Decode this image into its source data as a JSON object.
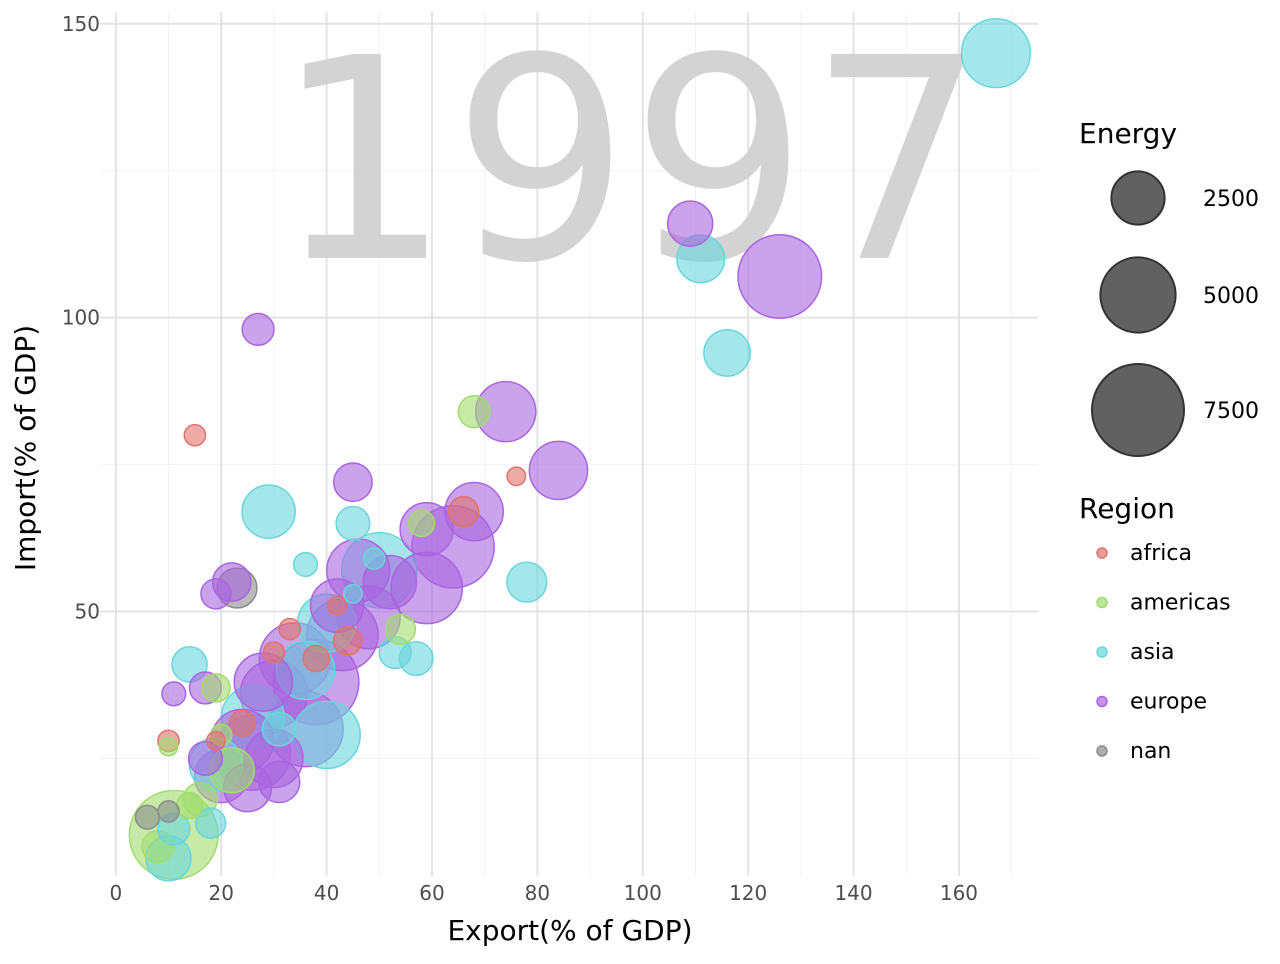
{
  "chart_data": {
    "type": "scatter",
    "annotation": "1997",
    "xlabel": "Export(% of GDP)",
    "ylabel": "Import(% of GDP)",
    "xlim": [
      -3,
      175
    ],
    "ylim": [
      5,
      152
    ],
    "x_ticks": [
      "0",
      "20",
      "40",
      "60",
      "80",
      "100",
      "120",
      "140",
      "160"
    ],
    "y_ticks": [
      "50",
      "100",
      "150"
    ],
    "grid": true,
    "legend_placement": "right",
    "size_legend": {
      "title": "Energy",
      "entries": [
        {
          "label": "2500",
          "value": 2500
        },
        {
          "label": "5000",
          "value": 5000
        },
        {
          "label": "7500",
          "value": 7500
        }
      ]
    },
    "color_legend": {
      "title": "Region",
      "entries": [
        {
          "label": "africa",
          "color": "#e0736d"
        },
        {
          "label": "americas",
          "color": "#a1dc6e"
        },
        {
          "label": "asia",
          "color": "#69d6dc"
        },
        {
          "label": "europe",
          "color": "#a965e0"
        },
        {
          "label": "nan",
          "color": "#8c8c8c"
        }
      ]
    },
    "points": [
      {
        "x": 167,
        "y": 145,
        "energy": 4200,
        "region": "asia"
      },
      {
        "x": 126,
        "y": 107,
        "energy": 6200,
        "region": "europe"
      },
      {
        "x": 109,
        "y": 116,
        "energy": 1800,
        "region": "europe"
      },
      {
        "x": 111,
        "y": 110,
        "energy": 2000,
        "region": "asia"
      },
      {
        "x": 116,
        "y": 94,
        "energy": 1900,
        "region": "asia"
      },
      {
        "x": 84,
        "y": 74,
        "energy": 3000,
        "region": "europe"
      },
      {
        "x": 74,
        "y": 84,
        "energy": 3200,
        "region": "europe"
      },
      {
        "x": 68,
        "y": 84,
        "energy": 900,
        "region": "americas"
      },
      {
        "x": 76,
        "y": 73,
        "energy": 300,
        "region": "africa"
      },
      {
        "x": 78,
        "y": 55,
        "energy": 1400,
        "region": "asia"
      },
      {
        "x": 64,
        "y": 61,
        "energy": 6000,
        "region": "europe"
      },
      {
        "x": 68,
        "y": 67,
        "energy": 3000,
        "region": "europe"
      },
      {
        "x": 66,
        "y": 67,
        "energy": 800,
        "region": "africa"
      },
      {
        "x": 59,
        "y": 64,
        "energy": 2500,
        "region": "europe"
      },
      {
        "x": 58,
        "y": 65,
        "energy": 600,
        "region": "americas"
      },
      {
        "x": 59,
        "y": 54,
        "energy": 4500,
        "region": "europe"
      },
      {
        "x": 57,
        "y": 42,
        "energy": 1000,
        "region": "asia"
      },
      {
        "x": 54,
        "y": 47,
        "energy": 800,
        "region": "americas"
      },
      {
        "x": 53,
        "y": 43,
        "energy": 900,
        "region": "asia"
      },
      {
        "x": 50,
        "y": 57,
        "energy": 5000,
        "region": "asia"
      },
      {
        "x": 52,
        "y": 55,
        "energy": 2500,
        "region": "europe"
      },
      {
        "x": 46,
        "y": 57,
        "energy": 3500,
        "region": "europe"
      },
      {
        "x": 48,
        "y": 49,
        "energy": 3500,
        "region": "europe"
      },
      {
        "x": 45,
        "y": 65,
        "energy": 1000,
        "region": "asia"
      },
      {
        "x": 45,
        "y": 72,
        "energy": 1300,
        "region": "europe"
      },
      {
        "x": 49,
        "y": 59,
        "energy": 400,
        "region": "asia"
      },
      {
        "x": 45,
        "y": 53,
        "energy": 300,
        "region": "asia"
      },
      {
        "x": 42,
        "y": 51,
        "energy": 2500,
        "region": "europe"
      },
      {
        "x": 40,
        "y": 48,
        "energy": 3000,
        "region": "asia"
      },
      {
        "x": 44,
        "y": 45,
        "energy": 700,
        "region": "africa"
      },
      {
        "x": 43,
        "y": 46,
        "energy": 4500,
        "region": "europe"
      },
      {
        "x": 38,
        "y": 42,
        "energy": 600,
        "region": "africa"
      },
      {
        "x": 42,
        "y": 51,
        "energy": 300,
        "region": "africa"
      },
      {
        "x": 29,
        "y": 67,
        "energy": 2500,
        "region": "asia"
      },
      {
        "x": 36,
        "y": 58,
        "energy": 500,
        "region": "asia"
      },
      {
        "x": 27,
        "y": 98,
        "energy": 900,
        "region": "europe"
      },
      {
        "x": 15,
        "y": 80,
        "energy": 400,
        "region": "africa"
      },
      {
        "x": 22,
        "y": 55,
        "energy": 1300,
        "region": "europe"
      },
      {
        "x": 19,
        "y": 53,
        "energy": 800,
        "region": "europe"
      },
      {
        "x": 23,
        "y": 54,
        "energy": 1400,
        "region": "nan"
      },
      {
        "x": 33,
        "y": 47,
        "energy": 400,
        "region": "africa"
      },
      {
        "x": 30,
        "y": 43,
        "energy": 400,
        "region": "africa"
      },
      {
        "x": 34,
        "y": 42,
        "energy": 4500,
        "region": "europe"
      },
      {
        "x": 38,
        "y": 38,
        "energy": 6500,
        "region": "europe"
      },
      {
        "x": 36,
        "y": 40,
        "energy": 3000,
        "region": "asia"
      },
      {
        "x": 30,
        "y": 36,
        "energy": 4000,
        "region": "europe"
      },
      {
        "x": 28,
        "y": 38,
        "energy": 3000,
        "region": "europe"
      },
      {
        "x": 26,
        "y": 32,
        "energy": 3500,
        "region": "asia"
      },
      {
        "x": 24,
        "y": 31,
        "energy": 600,
        "region": "africa"
      },
      {
        "x": 31,
        "y": 30,
        "energy": 1000,
        "region": "asia"
      },
      {
        "x": 40,
        "y": 29,
        "energy": 4000,
        "region": "asia"
      },
      {
        "x": 36,
        "y": 30,
        "energy": 5000,
        "region": "europe"
      },
      {
        "x": 24,
        "y": 28,
        "energy": 3500,
        "region": "europe"
      },
      {
        "x": 26,
        "y": 26,
        "energy": 5000,
        "region": "europe"
      },
      {
        "x": 30,
        "y": 25,
        "energy": 3000,
        "region": "europe"
      },
      {
        "x": 31,
        "y": 21,
        "energy": 1500,
        "region": "europe"
      },
      {
        "x": 25,
        "y": 20,
        "energy": 2000,
        "region": "europe"
      },
      {
        "x": 20,
        "y": 22,
        "energy": 2500,
        "region": "europe"
      },
      {
        "x": 19,
        "y": 24,
        "energy": 2500,
        "region": "asia"
      },
      {
        "x": 22,
        "y": 23,
        "energy": 1800,
        "region": "americas"
      },
      {
        "x": 17,
        "y": 25,
        "energy": 1000,
        "region": "europe"
      },
      {
        "x": 14,
        "y": 41,
        "energy": 1100,
        "region": "asia"
      },
      {
        "x": 17,
        "y": 37,
        "energy": 900,
        "region": "europe"
      },
      {
        "x": 19,
        "y": 37,
        "energy": 700,
        "region": "americas"
      },
      {
        "x": 11,
        "y": 36,
        "energy": 500,
        "region": "europe"
      },
      {
        "x": 10,
        "y": 27,
        "energy": 300,
        "region": "americas"
      },
      {
        "x": 10,
        "y": 28,
        "energy": 400,
        "region": "africa"
      },
      {
        "x": 19,
        "y": 28,
        "energy": 300,
        "region": "africa"
      },
      {
        "x": 20,
        "y": 29,
        "energy": 400,
        "region": "americas"
      },
      {
        "x": 16,
        "y": 18,
        "energy": 1000,
        "region": "americas"
      },
      {
        "x": 18,
        "y": 14,
        "energy": 800,
        "region": "asia"
      },
      {
        "x": 14,
        "y": 17,
        "energy": 600,
        "region": "americas"
      },
      {
        "x": 10,
        "y": 8,
        "energy": 1800,
        "region": "asia"
      },
      {
        "x": 11,
        "y": 12,
        "energy": 7000,
        "region": "americas"
      },
      {
        "x": 8,
        "y": 10,
        "energy": 900,
        "region": "americas"
      },
      {
        "x": 11,
        "y": 13,
        "energy": 900,
        "region": "asia"
      },
      {
        "x": 10,
        "y": 16,
        "energy": 400,
        "region": "nan"
      },
      {
        "x": 6,
        "y": 15,
        "energy": 500,
        "region": "nan"
      }
    ]
  }
}
